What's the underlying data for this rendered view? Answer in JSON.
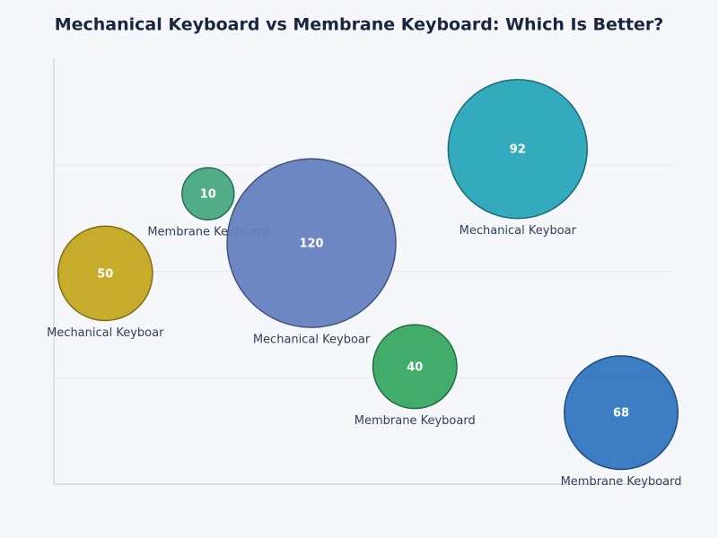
{
  "chart_data": {
    "type": "bubble",
    "title": "Mechanical Keyboard vs Membrane Keyboard: Which Is Better?",
    "points": [
      {
        "name": "Mechanical Keyboar",
        "x": 8.3,
        "y": 49.5,
        "value": 50,
        "color": "#c4a720"
      },
      {
        "name": "Membrane Keyboard",
        "x": 24.9,
        "y": 68.2,
        "value": 10,
        "color": "#48a882"
      },
      {
        "name": "Mechanical Keyboar",
        "x": 41.6,
        "y": 56.6,
        "value": 120,
        "color": "#6581c0"
      },
      {
        "name": "Mechanical Keyboar",
        "x": 74.9,
        "y": 78.7,
        "value": 92,
        "color": "#29a6b8"
      },
      {
        "name": "Membrane Keyboard",
        "x": 58.3,
        "y": 27.6,
        "value": 40,
        "color": "#38a862"
      },
      {
        "name": "Membrane Keyboard",
        "x": 91.6,
        "y": 16.8,
        "value": 68,
        "color": "#3376c0"
      }
    ],
    "xlim": [
      0,
      100
    ],
    "ylim": [
      0,
      100
    ],
    "yticks": [
      25,
      50,
      75
    ],
    "grid": true
  }
}
